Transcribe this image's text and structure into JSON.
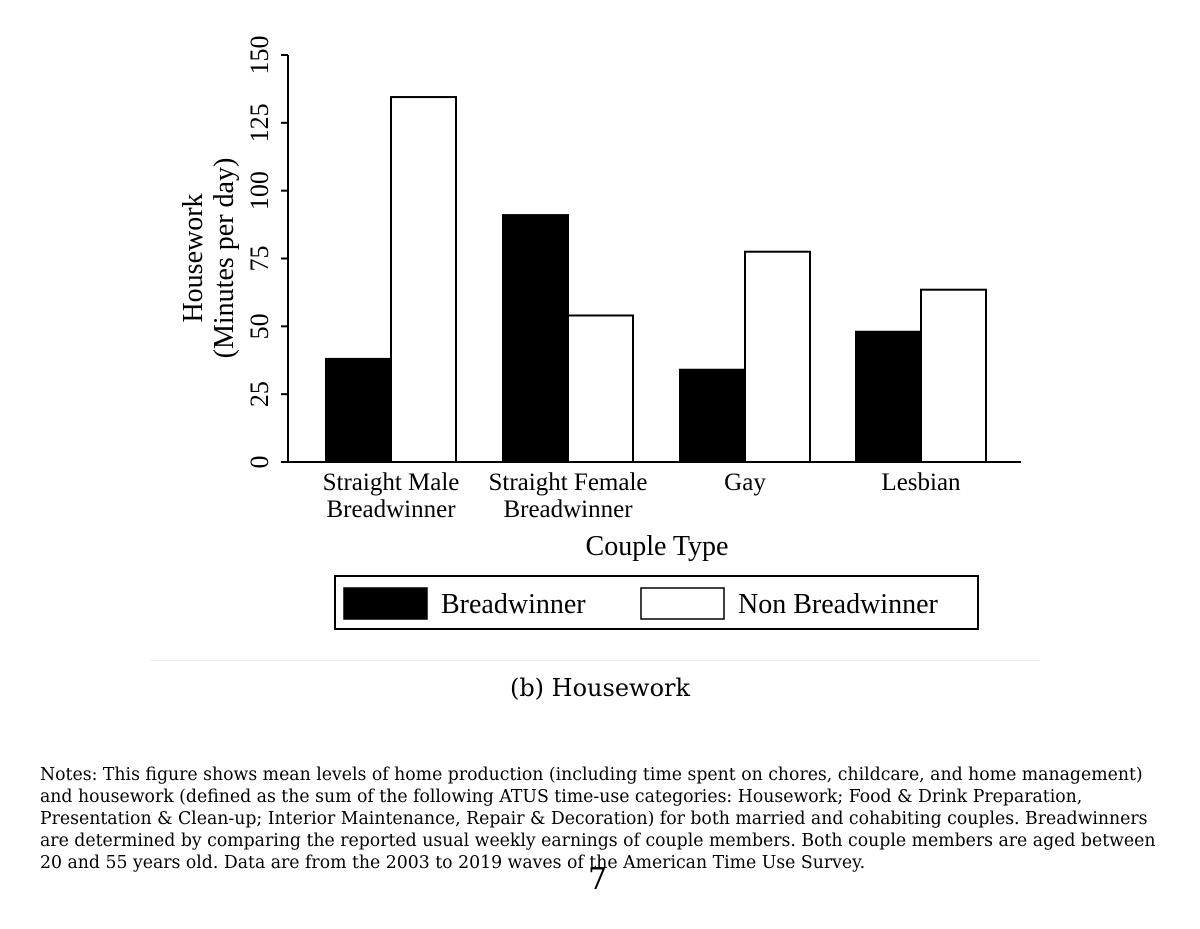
{
  "chart_data": {
    "type": "bar",
    "categories": [
      [
        "Straight Male",
        "Breadwinner"
      ],
      [
        "Straight Female",
        "Breadwinner"
      ],
      [
        "Gay"
      ],
      [
        "Lesbian"
      ]
    ],
    "series": [
      {
        "name": "Breadwinner",
        "values": [
          38,
          91,
          34,
          48
        ],
        "color": "#000000"
      },
      {
        "name": "Non Breadwinner",
        "values": [
          134.5,
          54,
          77.5,
          63.5
        ],
        "color": "#ffffff"
      }
    ],
    "ylim": [
      0,
      150
    ],
    "yticks": [
      0,
      25,
      50,
      75,
      100,
      125,
      150
    ],
    "ylabel": [
      "Housework",
      "(Minutes per day)"
    ],
    "xlabel": "Couple Type",
    "legend_position": "bottom",
    "grid": false
  },
  "caption": "(b) Housework",
  "notes": "Notes: This figure shows mean levels of home production (including time spent on chores, childcare, and home management) and housework (defined as the sum of the following ATUS time-use categories: Housework; Food & Drink Preparation, Presentation & Clean-up; Interior Maintenance, Repair & Decoration) for both married and cohabiting couples. Breadwinners are determined by comparing the reported usual weekly earnings of couple members. Both couple members are aged between 20 and 55 years old. Data are from the 2003 to 2019 waves of the American Time Use Survey.",
  "page_number": "7"
}
